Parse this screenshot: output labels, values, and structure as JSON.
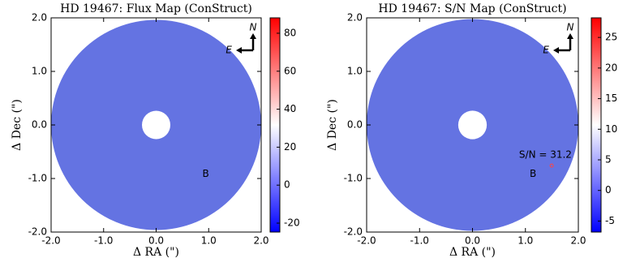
{
  "chart_data": [
    {
      "type": "image",
      "title": "HD 19467: Flux Map (ConStruct)",
      "xlabel": "Δ RA (\")",
      "ylabel": "Δ Dec (\")",
      "xlim": [
        -2.0,
        2.0
      ],
      "ylim": [
        -2.0,
        2.0
      ],
      "xticks": [
        {
          "value": -2.0,
          "label": "-2.0"
        },
        {
          "value": -1.0,
          "label": "-1.0"
        },
        {
          "value": 0.0,
          "label": "0.0"
        },
        {
          "value": 1.0,
          "label": "1.0"
        },
        {
          "value": 2.0,
          "label": "2.0"
        }
      ],
      "yticks": [
        {
          "value": -2.0,
          "label": "-2.0"
        },
        {
          "value": -1.0,
          "label": "-1.0"
        },
        {
          "value": 0.0,
          "label": "0.0"
        },
        {
          "value": 1.0,
          "label": "1.0"
        },
        {
          "value": 2.0,
          "label": "2.0"
        }
      ],
      "image_color": "#6473e2",
      "colormap": [
        "#0000ff",
        "#ffffff",
        "#ff0000"
      ],
      "clim": [
        -24.7,
        88.1
      ],
      "cticks": [
        -20,
        0,
        20,
        40,
        60,
        80
      ],
      "compass": [
        "N",
        "E"
      ],
      "annotations": [
        "B"
      ]
    },
    {
      "type": "image",
      "title": "HD 19467: S/N Map (ConStruct)",
      "xlabel": "Δ RA (\")",
      "ylabel": "Δ Dec (\")",
      "xlim": [
        -2.0,
        2.0
      ],
      "ylim": [
        -2.0,
        2.0
      ],
      "xticks": [
        {
          "value": -2.0,
          "label": "-2.0"
        },
        {
          "value": -1.0,
          "label": "-1.0"
        },
        {
          "value": 0.0,
          "label": "0.0"
        },
        {
          "value": 1.0,
          "label": "1.0"
        },
        {
          "value": 2.0,
          "label": "2.0"
        }
      ],
      "yticks": [
        {
          "value": -2.0,
          "label": "-2.0"
        },
        {
          "value": -1.0,
          "label": "-1.0"
        },
        {
          "value": 0.0,
          "label": "0.0"
        },
        {
          "value": 1.0,
          "label": "1.0"
        },
        {
          "value": 2.0,
          "label": "2.0"
        }
      ],
      "image_color": "#6473e2",
      "colormap": [
        "#0000ff",
        "#ffffff",
        "#ff0000"
      ],
      "clim": [
        -6.8,
        28.2
      ],
      "cticks": [
        -5,
        0,
        5,
        10,
        15,
        20,
        25
      ],
      "compass": [
        "N",
        "E"
      ],
      "annotations": [
        "S/N = 31.2",
        "B"
      ]
    }
  ]
}
